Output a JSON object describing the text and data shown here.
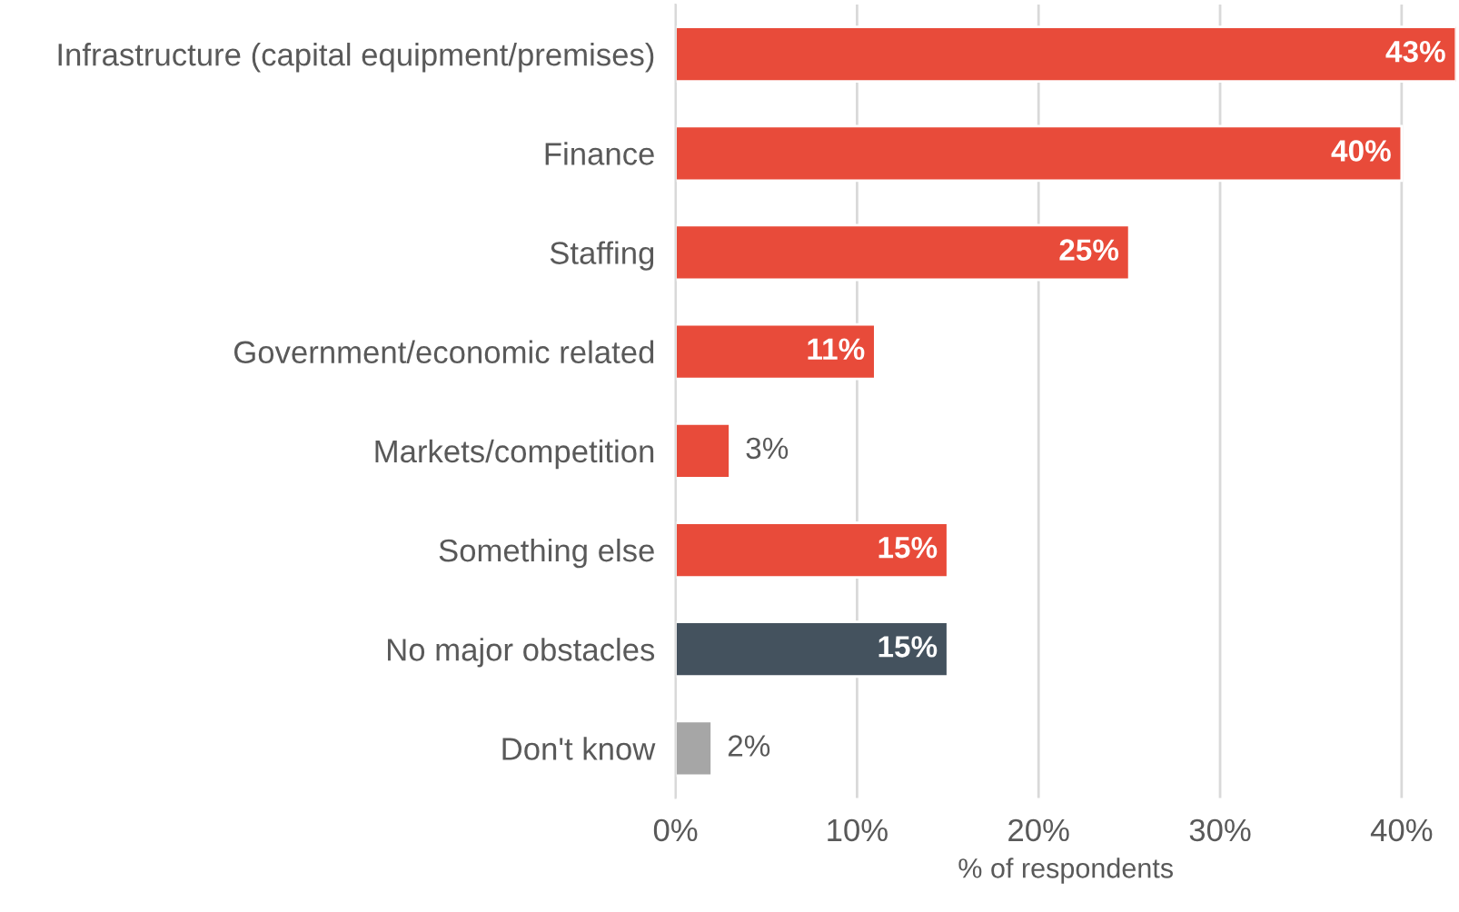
{
  "chart_data": {
    "type": "bar",
    "orientation": "horizontal",
    "xlabel": "% of respondents",
    "categories": [
      "Infrastructure (capital equipment/premises)",
      "Finance",
      "Staffing",
      "Government/economic related",
      "Markets/competition",
      "Something else",
      "No major obstacles",
      "Don't know"
    ],
    "values": [
      43,
      40,
      25,
      11,
      3,
      15,
      15,
      2
    ],
    "colors": [
      "#e84b3a",
      "#e84b3a",
      "#e84b3a",
      "#e84b3a",
      "#e84b3a",
      "#e84b3a",
      "#44525e",
      "#a6a6a6"
    ],
    "value_labels": [
      "43%",
      "40%",
      "25%",
      "11%",
      "3%",
      "15%",
      "15%",
      "2%"
    ],
    "xlim": [
      0,
      43
    ],
    "xticks": [
      {
        "value": 0,
        "label": "0%"
      },
      {
        "value": 10,
        "label": "10%"
      },
      {
        "value": 20,
        "label": "20%"
      },
      {
        "value": 30,
        "label": "30%"
      },
      {
        "value": 40,
        "label": "40%"
      }
    ],
    "grid": "x",
    "legend": false
  }
}
